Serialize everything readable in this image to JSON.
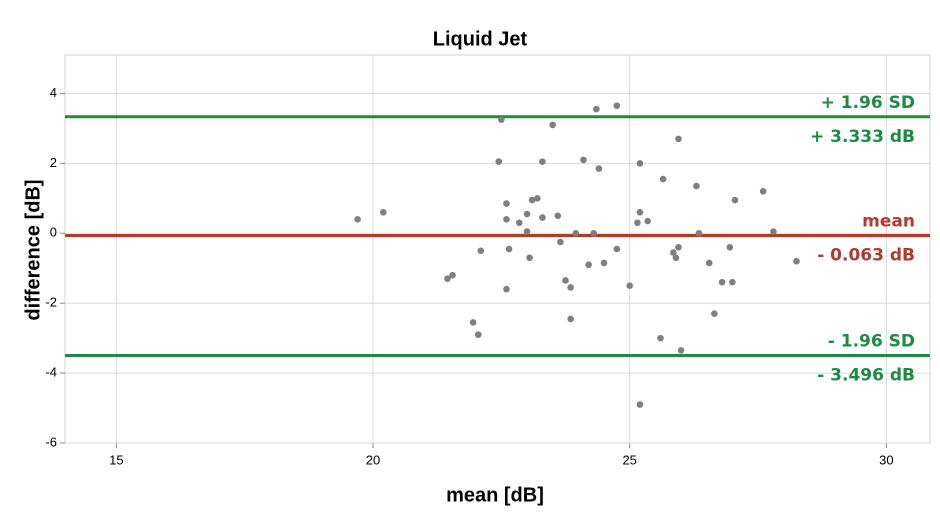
{
  "chart_data": {
    "type": "scatter",
    "title": "Liquid Jet",
    "x_label": "mean [dB]",
    "y_label": "difference [dB]",
    "x": [
      19.7,
      20.2,
      21.45,
      21.55,
      21.95,
      22.05,
      22.1,
      22.45,
      22.5,
      22.6,
      22.6,
      22.65,
      22.6,
      22.85,
      23.0,
      23.0,
      23.05,
      23.1,
      23.2,
      23.3,
      23.3,
      23.5,
      23.6,
      23.65,
      23.75,
      23.85,
      23.85,
      23.95,
      24.1,
      24.2,
      24.3,
      24.35,
      24.4,
      24.5,
      24.75,
      24.75,
      25.0,
      25.15,
      25.2,
      25.2,
      25.2,
      25.35,
      25.6,
      25.65,
      25.85,
      25.9,
      25.95,
      25.95,
      26.0,
      26.3,
      26.35,
      26.55,
      26.65,
      26.8,
      26.95,
      27.0,
      27.05,
      27.6,
      27.8,
      28.25
    ],
    "values": [
      0.4,
      0.6,
      -1.3,
      -1.2,
      -2.55,
      -2.9,
      -0.5,
      2.05,
      3.25,
      0.85,
      0.4,
      -0.45,
      -1.6,
      0.3,
      0.55,
      0.05,
      -0.7,
      0.95,
      1.0,
      0.45,
      2.05,
      3.1,
      0.5,
      -0.25,
      -1.35,
      -1.55,
      -2.45,
      0.0,
      2.1,
      -0.9,
      0.0,
      3.55,
      1.85,
      -0.85,
      3.65,
      -0.45,
      -1.5,
      0.3,
      0.6,
      2.0,
      -4.9,
      0.35,
      -3.0,
      1.55,
      -0.55,
      -0.7,
      2.7,
      -0.4,
      -3.35,
      1.35,
      0.0,
      -0.85,
      -2.3,
      -1.4,
      -0.4,
      -1.4,
      0.95,
      1.2,
      0.05,
      -0.8
    ],
    "color": "#7f7f7f",
    "xlim": [
      14.0,
      30.85
    ],
    "ylim": [
      -6,
      5.1
    ],
    "xticks": [
      15,
      20,
      25,
      30
    ],
    "yticks": [
      -6,
      -4,
      -2,
      0,
      2,
      4
    ],
    "grid": true,
    "reference_lines": [
      {
        "name": "+ 1.96 SD",
        "value": 3.333,
        "value_label": "+ 3.333 dB",
        "color": "#1e8a45"
      },
      {
        "name": "mean",
        "value": -0.063,
        "value_label": "- 0.063 dB",
        "color": "#b03a2e"
      },
      {
        "name": "- 1.96 SD",
        "value": -3.496,
        "value_label": "- 3.496 dB",
        "color": "#1e8a45"
      }
    ]
  }
}
